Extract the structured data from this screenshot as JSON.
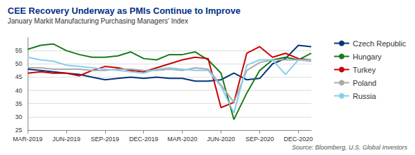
{
  "chart_data": {
    "type": "line",
    "title": "CEE Recovery Underway as PMIs Continue to Improve",
    "subtitle": "January Markit Manufacturing Purchasing Managers' Index",
    "annotations": [
      "Source: Bloomberg, U.S. Global Investors"
    ],
    "categories": [
      "MAR-2019",
      null,
      null,
      "JUN-2019",
      null,
      null,
      "SEP-2019",
      null,
      null,
      "DEC-2019",
      null,
      null,
      "MAR-2020",
      null,
      null,
      "JUN-2020",
      null,
      null,
      "SEP-2020",
      null,
      null,
      "DEC-2020",
      null
    ],
    "series": [
      {
        "name": "Czech Republic",
        "color": "#00357A",
        "values": [
          48.0,
          47.5,
          47.0,
          46.5,
          46.0,
          45.0,
          44.0,
          44.5,
          45.0,
          44.5,
          45.0,
          44.5,
          44.5,
          43.5,
          43.5,
          44.0,
          46.5,
          44.0,
          44.5,
          50.0,
          52.0,
          57.0,
          56.5
        ]
      },
      {
        "name": "Hungary",
        "color": "#1a7a1a",
        "values": [
          55.5,
          57.0,
          57.5,
          55.0,
          53.5,
          52.5,
          52.5,
          53.0,
          54.5,
          52.0,
          51.5,
          53.5,
          53.5,
          54.5,
          51.5,
          46.5,
          29.0,
          39.0,
          47.5,
          51.5,
          52.5,
          51.5,
          54.0
        ]
      },
      {
        "name": "Turkey",
        "color": "#CC0000",
        "values": [
          46.5,
          47.0,
          46.5,
          46.5,
          45.5,
          47.5,
          49.0,
          48.5,
          47.5,
          47.0,
          48.5,
          50.0,
          51.5,
          52.5,
          52.0,
          33.5,
          35.5,
          54.0,
          56.5,
          52.5,
          54.0,
          52.0,
          51.5
        ]
      },
      {
        "name": "Poland",
        "color": "#aaaaaa",
        "values": [
          48.5,
          48.5,
          48.0,
          48.0,
          48.0,
          47.5,
          47.5,
          48.0,
          48.0,
          47.5,
          47.5,
          48.0,
          47.5,
          48.5,
          48.0,
          42.0,
          35.5,
          47.5,
          50.5,
          51.5,
          51.5,
          51.5,
          51.0
        ]
      },
      {
        "name": "Russia",
        "color": "#87CEEB",
        "values": [
          52.5,
          51.5,
          51.0,
          49.5,
          49.0,
          48.5,
          48.0,
          47.5,
          47.0,
          46.5,
          48.0,
          48.5,
          48.0,
          47.5,
          47.5,
          41.5,
          31.5,
          49.5,
          51.5,
          51.5,
          46.0,
          51.5,
          51.5
        ]
      }
    ],
    "ylim": [
      25,
      60
    ],
    "yticks": [
      25,
      30,
      35,
      40,
      45,
      50,
      55
    ],
    "grid": true,
    "legend": "right"
  }
}
